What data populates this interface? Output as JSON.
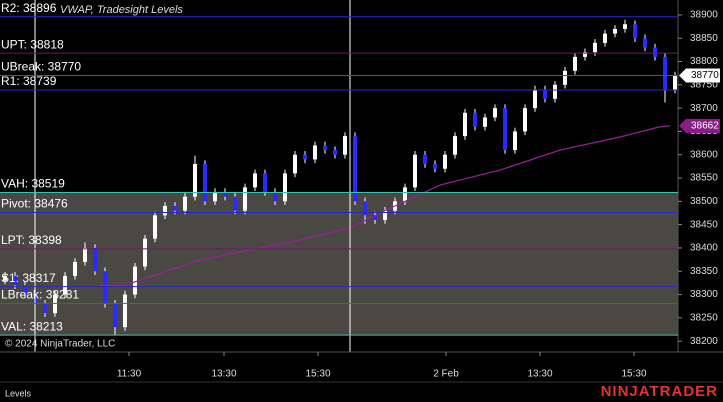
{
  "chart_data": {
    "type": "candlestick",
    "indicator_label": "VWAP, Tradesight Levels",
    "copyright": "© 2024 NinjaTrader, LLC",
    "panel_label": "Levels",
    "brand": "NINJATRADER",
    "up_color": "#ffffff",
    "down_color": "#2a2aff",
    "ylim": [
      38181,
      38932
    ],
    "yticks": [
      38200,
      38250,
      38300,
      38350,
      38400,
      38450,
      38500,
      38550,
      38600,
      38650,
      38700,
      38750,
      38800,
      38850,
      38900
    ],
    "xlim": [
      -0.5,
      67.3
    ],
    "xticks": [
      {
        "value": 12.4,
        "label": "11:30"
      },
      {
        "value": 21.9,
        "label": "13:30"
      },
      {
        "value": 31.3,
        "label": "15:30"
      },
      {
        "value": 44.1,
        "label": "2 Feb"
      },
      {
        "value": 53.5,
        "label": "13:30"
      },
      {
        "value": 62.9,
        "label": "15:30"
      }
    ],
    "candles": [
      [
        38330,
        38348,
        38322,
        38340
      ],
      [
        38340,
        38348,
        38312,
        38320
      ],
      [
        38320,
        38328,
        38292,
        38300
      ],
      [
        38300,
        38308,
        38272,
        38280
      ],
      [
        38280,
        38288,
        38252,
        38260
      ],
      [
        38260,
        38308,
        38252,
        38300
      ],
      [
        38300,
        38348,
        38292,
        38340
      ],
      [
        38340,
        38378,
        38332,
        38370
      ],
      [
        38370,
        38412,
        38362,
        38400
      ],
      [
        38400,
        38408,
        38342,
        38350
      ],
      [
        38350,
        38358,
        38272,
        38280
      ],
      [
        38280,
        38288,
        38213,
        38230
      ],
      [
        38230,
        38308,
        38222,
        38300
      ],
      [
        38300,
        38368,
        38292,
        38360
      ],
      [
        38360,
        38428,
        38352,
        38420
      ],
      [
        38420,
        38478,
        38412,
        38470
      ],
      [
        38470,
        38498,
        38462,
        38490
      ],
      [
        38490,
        38498,
        38472,
        38480
      ],
      [
        38480,
        38518,
        38472,
        38510
      ],
      [
        38510,
        38598,
        38502,
        38580
      ],
      [
        38580,
        38588,
        38492,
        38500
      ],
      [
        38500,
        38528,
        38492,
        38520
      ],
      [
        38520,
        38528,
        38502,
        38510
      ],
      [
        38510,
        38518,
        38472,
        38480
      ],
      [
        38480,
        38538,
        38472,
        38530
      ],
      [
        38530,
        38568,
        38522,
        38560
      ],
      [
        38560,
        38568,
        38512,
        38520
      ],
      [
        38520,
        38528,
        38492,
        38500
      ],
      [
        38500,
        38568,
        38492,
        38560
      ],
      [
        38560,
        38608,
        38552,
        38600
      ],
      [
        38600,
        38608,
        38582,
        38590
      ],
      [
        38590,
        38628,
        38582,
        38620
      ],
      [
        38620,
        38628,
        38602,
        38610
      ],
      [
        38610,
        38618,
        38592,
        38600
      ],
      [
        38600,
        38648,
        38592,
        38640
      ],
      [
        38640,
        38648,
        38492,
        38500
      ],
      [
        38500,
        38508,
        38452,
        38470
      ],
      [
        38470,
        38478,
        38452,
        38460
      ],
      [
        38460,
        38488,
        38452,
        38480
      ],
      [
        38480,
        38508,
        38472,
        38500
      ],
      [
        38500,
        38538,
        38492,
        38530
      ],
      [
        38530,
        38608,
        38522,
        38600
      ],
      [
        38600,
        38608,
        38572,
        38580
      ],
      [
        38580,
        38588,
        38562,
        38570
      ],
      [
        38570,
        38608,
        38562,
        38600
      ],
      [
        38600,
        38648,
        38592,
        38640
      ],
      [
        38640,
        38698,
        38632,
        38690
      ],
      [
        38690,
        38698,
        38652,
        38660
      ],
      [
        38660,
        38688,
        38652,
        38680
      ],
      [
        38680,
        38708,
        38672,
        38700
      ],
      [
        38700,
        38708,
        38602,
        38610
      ],
      [
        38610,
        38658,
        38602,
        38650
      ],
      [
        38650,
        38708,
        38642,
        38700
      ],
      [
        38700,
        38748,
        38692,
        38740
      ],
      [
        38740,
        38748,
        38712,
        38720
      ],
      [
        38720,
        38758,
        38712,
        38750
      ],
      [
        38750,
        38788,
        38742,
        38780
      ],
      [
        38780,
        38818,
        38772,
        38810
      ],
      [
        38810,
        38828,
        38802,
        38820
      ],
      [
        38820,
        38848,
        38812,
        38840
      ],
      [
        38840,
        38868,
        38832,
        38860
      ],
      [
        38860,
        38878,
        38852,
        38870
      ],
      [
        38870,
        38890,
        38862,
        38880
      ],
      [
        38880,
        38888,
        38842,
        38850
      ],
      [
        38850,
        38858,
        38822,
        38830
      ],
      [
        38830,
        38838,
        38802,
        38810
      ],
      [
        38810,
        38818,
        38712,
        38740
      ],
      [
        38740,
        38778,
        38732,
        38770
      ]
    ],
    "vwap": {
      "color": "#9b1f9b",
      "x": [
        9.5,
        12,
        19.5,
        29.5,
        34.5,
        37.5,
        43.5,
        49.5,
        55.5,
        61.5,
        65.5,
        66.5
      ],
      "values": [
        38320,
        38320,
        38374,
        38417,
        38443,
        38475,
        38535,
        38567,
        38610,
        38638,
        38660,
        38662
      ]
    },
    "value_area": {
      "high": 38519,
      "low": 38213,
      "color": "#4a4843"
    },
    "levels": [
      {
        "value": 38896,
        "label": "R2: 38896",
        "color": "#2828c8"
      },
      {
        "value": 38818,
        "label": "UPT: 38818",
        "color": "#6a1a6a"
      },
      {
        "value": 38770,
        "label": "UBreak: 38770",
        "color": "#c82828"
      },
      {
        "value": 38739,
        "label": "R1: 38739",
        "color": "#2828c8"
      },
      {
        "value": 38519,
        "label": "VAH: 38519",
        "color": "#40c0b0"
      },
      {
        "value": 38476,
        "label": "Pivot: 38476",
        "color": "#2828c8"
      },
      {
        "value": 38398,
        "label": "LPT: 38398",
        "color": "#6a1a6a"
      },
      {
        "value": 38317,
        "label": "S1: 38317",
        "color": "#2828c8"
      },
      {
        "value": 38281,
        "label": "LBreak: 38281",
        "color": "#1f8a1f"
      },
      {
        "value": 38213,
        "label": "VAL: 38213",
        "color": "#40c0b0"
      }
    ],
    "price_markers": [
      {
        "value": 38770,
        "color": "#ffffff",
        "text_color": "#000000"
      },
      {
        "value": 38662,
        "color": "#8b1a8b",
        "text_color": "#ffffff"
      }
    ]
  }
}
